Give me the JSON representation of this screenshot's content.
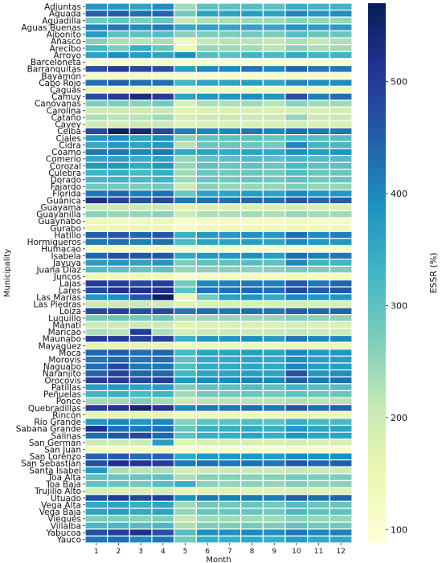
{
  "chart_data": {
    "type": "heatmap",
    "xlabel": "Month",
    "ylabel": "Municipality",
    "colorbar_label": "ESSR (%)",
    "colorbar_ticks": [
      100,
      200,
      300,
      400,
      500
    ],
    "colorbar_range": [
      88,
      570
    ],
    "colormap": "YlGnBu",
    "cell_border_color": "#ffffff",
    "x": [
      "1",
      "2",
      "3",
      "4",
      "5",
      "6",
      "7",
      "8",
      "9",
      "10",
      "11",
      "12"
    ],
    "y": [
      "Adjuntas",
      "Aguada",
      "Aguadilla",
      "Aguas Buenas",
      "Aibonito",
      "Añasco",
      "Arecibo",
      "Arroyo",
      "Barceloneta",
      "Barranquitas",
      "Bayamón",
      "Cabo Rojo",
      "Caguas",
      "Camuy",
      "Canóvanas",
      "Carolina",
      "Cataño",
      "Cayey",
      "Ceiba",
      "Ciales",
      "Cidra",
      "Coamo",
      "Comerío",
      "Corozal",
      "Culebra",
      "Dorado",
      "Fajardo",
      "Florida",
      "Guánica",
      "Guayama",
      "Guayanilla",
      "Guaynabo",
      "Gurabo",
      "Hatillo",
      "Hormigueros",
      "Humacao",
      "Isabela",
      "Jayuya",
      "Juana Díaz",
      "Juncos",
      "Lajas",
      "Lares",
      "Las Marías",
      "Las Piedras",
      "Loíza",
      "Luquillo",
      "Manatí",
      "Maricao",
      "Maunabo",
      "Mayagüez",
      "Moca",
      "Morovis",
      "Naguabo",
      "Naranjito",
      "Orocovis",
      "Patillas",
      "Peñuelas",
      "Ponce",
      "Quebradillas",
      "Rincón",
      "Río Grande",
      "Sabana Grande",
      "Salinas",
      "San Germán",
      "San Juan",
      "San Lorenzo",
      "San Sebastián",
      "Santa Isabel",
      "Toa Alta",
      "Toa Baja",
      "Trujillo Alto",
      "Utuado",
      "Vega Alta",
      "Vega Baja",
      "Vieques",
      "Villalba",
      "Yabucoa",
      "Yauco"
    ],
    "values": [
      [
        380,
        380,
        360,
        390,
        240,
        300,
        300,
        310,
        300,
        340,
        330,
        330
      ],
      [
        440,
        450,
        430,
        440,
        280,
        360,
        360,
        370,
        360,
        400,
        380,
        390
      ],
      [
        280,
        290,
        270,
        290,
        200,
        230,
        230,
        240,
        240,
        260,
        250,
        250
      ],
      [
        400,
        420,
        390,
        410,
        350,
        360,
        350,
        360,
        350,
        380,
        370,
        370
      ],
      [
        370,
        300,
        300,
        310,
        260,
        270,
        270,
        280,
        270,
        310,
        290,
        290
      ],
      [
        260,
        230,
        220,
        230,
        130,
        210,
        220,
        220,
        210,
        230,
        210,
        230
      ],
      [
        320,
        270,
        340,
        290,
        150,
        250,
        240,
        240,
        220,
        260,
        230,
        240
      ],
      [
        360,
        390,
        370,
        360,
        390,
        310,
        300,
        330,
        320,
        350,
        330,
        330
      ],
      [
        100,
        110,
        110,
        110,
        95,
        100,
        100,
        100,
        100,
        100,
        100,
        100
      ],
      [
        470,
        500,
        480,
        470,
        370,
        400,
        400,
        420,
        400,
        440,
        420,
        420
      ],
      [
        120,
        120,
        120,
        120,
        110,
        110,
        110,
        110,
        110,
        110,
        110,
        110
      ],
      [
        430,
        450,
        430,
        430,
        330,
        360,
        360,
        370,
        360,
        400,
        390,
        390
      ],
      [
        150,
        140,
        150,
        150,
        120,
        130,
        130,
        130,
        130,
        140,
        130,
        140
      ],
      [
        470,
        500,
        530,
        500,
        360,
        380,
        380,
        390,
        380,
        470,
        410,
        430
      ],
      [
        270,
        270,
        260,
        280,
        180,
        230,
        230,
        240,
        220,
        260,
        240,
        240
      ],
      [
        200,
        200,
        200,
        210,
        170,
        180,
        180,
        180,
        180,
        190,
        180,
        190
      ],
      [
        230,
        220,
        220,
        240,
        190,
        200,
        200,
        200,
        200,
        250,
        200,
        200
      ],
      [
        200,
        190,
        200,
        200,
        170,
        180,
        180,
        180,
        180,
        190,
        180,
        180
      ],
      [
        480,
        560,
        540,
        480,
        410,
        400,
        400,
        420,
        400,
        430,
        420,
        420
      ],
      [
        380,
        390,
        360,
        390,
        260,
        300,
        300,
        300,
        290,
        320,
        310,
        310
      ],
      [
        350,
        380,
        360,
        380,
        220,
        290,
        290,
        290,
        280,
        400,
        330,
        320
      ],
      [
        420,
        420,
        400,
        420,
        350,
        360,
        350,
        360,
        350,
        390,
        370,
        380
      ],
      [
        350,
        360,
        340,
        360,
        250,
        300,
        300,
        310,
        300,
        320,
        310,
        310
      ],
      [
        380,
        380,
        350,
        380,
        250,
        300,
        290,
        300,
        290,
        320,
        300,
        300
      ],
      [
        330,
        340,
        320,
        340,
        240,
        290,
        280,
        290,
        280,
        310,
        290,
        290
      ],
      [
        320,
        330,
        320,
        330,
        240,
        290,
        280,
        290,
        280,
        300,
        280,
        290
      ],
      [
        280,
        280,
        270,
        280,
        200,
        260,
        250,
        250,
        250,
        270,
        250,
        250
      ],
      [
        420,
        440,
        410,
        430,
        290,
        360,
        360,
        370,
        360,
        400,
        380,
        380
      ],
      [
        520,
        490,
        470,
        480,
        420,
        430,
        430,
        440,
        430,
        460,
        440,
        450
      ],
      [
        200,
        200,
        200,
        200,
        170,
        180,
        180,
        180,
        180,
        190,
        180,
        180
      ],
      [
        260,
        250,
        250,
        260,
        200,
        230,
        230,
        240,
        230,
        250,
        240,
        240
      ],
      [
        140,
        130,
        130,
        140,
        110,
        120,
        120,
        120,
        120,
        130,
        120,
        120
      ],
      [
        150,
        150,
        150,
        150,
        120,
        140,
        140,
        140,
        140,
        150,
        140,
        140
      ],
      [
        450,
        460,
        440,
        460,
        340,
        380,
        380,
        390,
        380,
        430,
        400,
        410
      ],
      [
        420,
        430,
        410,
        430,
        320,
        360,
        360,
        370,
        360,
        400,
        380,
        380
      ],
      [
        120,
        120,
        120,
        120,
        110,
        110,
        110,
        110,
        110,
        110,
        110,
        110
      ],
      [
        440,
        470,
        460,
        460,
        350,
        380,
        380,
        390,
        370,
        430,
        410,
        420
      ],
      [
        370,
        380,
        360,
        380,
        270,
        300,
        300,
        310,
        300,
        400,
        330,
        330
      ],
      [
        310,
        300,
        290,
        300,
        250,
        260,
        260,
        260,
        260,
        280,
        270,
        270
      ],
      [
        140,
        140,
        140,
        140,
        110,
        130,
        130,
        130,
        130,
        140,
        130,
        130
      ],
      [
        500,
        500,
        480,
        500,
        280,
        400,
        410,
        420,
        410,
        460,
        420,
        440
      ],
      [
        480,
        520,
        520,
        520,
        300,
        430,
        430,
        440,
        430,
        480,
        450,
        460
      ],
      [
        380,
        390,
        460,
        560,
        150,
        280,
        360,
        380,
        350,
        400,
        380,
        380
      ],
      [
        200,
        200,
        200,
        200,
        170,
        180,
        180,
        180,
        180,
        190,
        180,
        180
      ],
      [
        480,
        490,
        470,
        480,
        420,
        430,
        420,
        430,
        420,
        450,
        440,
        440
      ],
      [
        280,
        290,
        280,
        290,
        230,
        250,
        250,
        250,
        250,
        270,
        260,
        260
      ],
      [
        200,
        200,
        200,
        200,
        170,
        180,
        180,
        180,
        180,
        190,
        180,
        180
      ],
      [
        230,
        220,
        500,
        230,
        190,
        200,
        200,
        200,
        200,
        210,
        200,
        200
      ],
      [
        500,
        500,
        490,
        490,
        340,
        380,
        380,
        390,
        370,
        420,
        400,
        400
      ],
      [
        160,
        160,
        160,
        160,
        130,
        140,
        140,
        140,
        140,
        150,
        140,
        140
      ],
      [
        440,
        450,
        430,
        440,
        320,
        360,
        360,
        370,
        360,
        400,
        380,
        380
      ],
      [
        420,
        440,
        420,
        430,
        300,
        350,
        350,
        360,
        350,
        390,
        370,
        370
      ],
      [
        430,
        480,
        420,
        420,
        310,
        350,
        350,
        360,
        350,
        400,
        370,
        370
      ],
      [
        440,
        490,
        440,
        440,
        330,
        360,
        360,
        370,
        360,
        470,
        380,
        390
      ],
      [
        500,
        500,
        480,
        500,
        380,
        400,
        400,
        410,
        400,
        450,
        420,
        430
      ],
      [
        370,
        380,
        360,
        370,
        270,
        300,
        300,
        310,
        300,
        330,
        310,
        310
      ],
      [
        330,
        340,
        320,
        330,
        240,
        280,
        280,
        290,
        280,
        300,
        290,
        290
      ],
      [
        240,
        240,
        270,
        240,
        200,
        220,
        220,
        220,
        220,
        230,
        220,
        220
      ],
      [
        500,
        510,
        540,
        510,
        400,
        420,
        420,
        430,
        420,
        460,
        430,
        440
      ],
      [
        160,
        160,
        160,
        160,
        130,
        140,
        140,
        140,
        140,
        150,
        140,
        140
      ],
      [
        380,
        400,
        380,
        400,
        260,
        300,
        300,
        310,
        300,
        340,
        320,
        320
      ],
      [
        520,
        430,
        420,
        430,
        290,
        340,
        340,
        350,
        340,
        380,
        360,
        360
      ],
      [
        430,
        460,
        480,
        440,
        300,
        340,
        340,
        360,
        340,
        380,
        360,
        360
      ],
      [
        200,
        200,
        200,
        370,
        170,
        180,
        180,
        180,
        180,
        190,
        180,
        180
      ],
      [
        130,
        120,
        120,
        130,
        105,
        110,
        110,
        110,
        110,
        120,
        110,
        110
      ],
      [
        440,
        450,
        430,
        440,
        350,
        380,
        380,
        380,
        370,
        400,
        390,
        390
      ],
      [
        470,
        520,
        510,
        500,
        420,
        430,
        420,
        430,
        420,
        460,
        440,
        450
      ],
      [
        380,
        230,
        220,
        230,
        190,
        200,
        200,
        200,
        200,
        210,
        200,
        200
      ],
      [
        300,
        290,
        290,
        300,
        230,
        260,
        260,
        260,
        260,
        280,
        270,
        270
      ],
      [
        300,
        290,
        280,
        310,
        340,
        260,
        250,
        260,
        250,
        270,
        260,
        260
      ],
      [
        190,
        180,
        180,
        190,
        160,
        170,
        170,
        170,
        170,
        180,
        170,
        170
      ],
      [
        470,
        500,
        480,
        490,
        390,
        420,
        410,
        420,
        410,
        450,
        430,
        440
      ],
      [
        350,
        360,
        340,
        360,
        240,
        280,
        280,
        290,
        280,
        310,
        290,
        290
      ],
      [
        360,
        370,
        350,
        360,
        250,
        290,
        290,
        290,
        280,
        320,
        300,
        300
      ],
      [
        270,
        270,
        260,
        270,
        210,
        240,
        240,
        240,
        240,
        260,
        250,
        250
      ],
      [
        320,
        320,
        310,
        320,
        230,
        270,
        270,
        280,
        270,
        300,
        280,
        280
      ],
      [
        470,
        500,
        520,
        470,
        310,
        390,
        390,
        400,
        390,
        420,
        400,
        410
      ],
      [
        420,
        430,
        400,
        420,
        280,
        340,
        340,
        350,
        340,
        370,
        350,
        350
      ]
    ]
  }
}
